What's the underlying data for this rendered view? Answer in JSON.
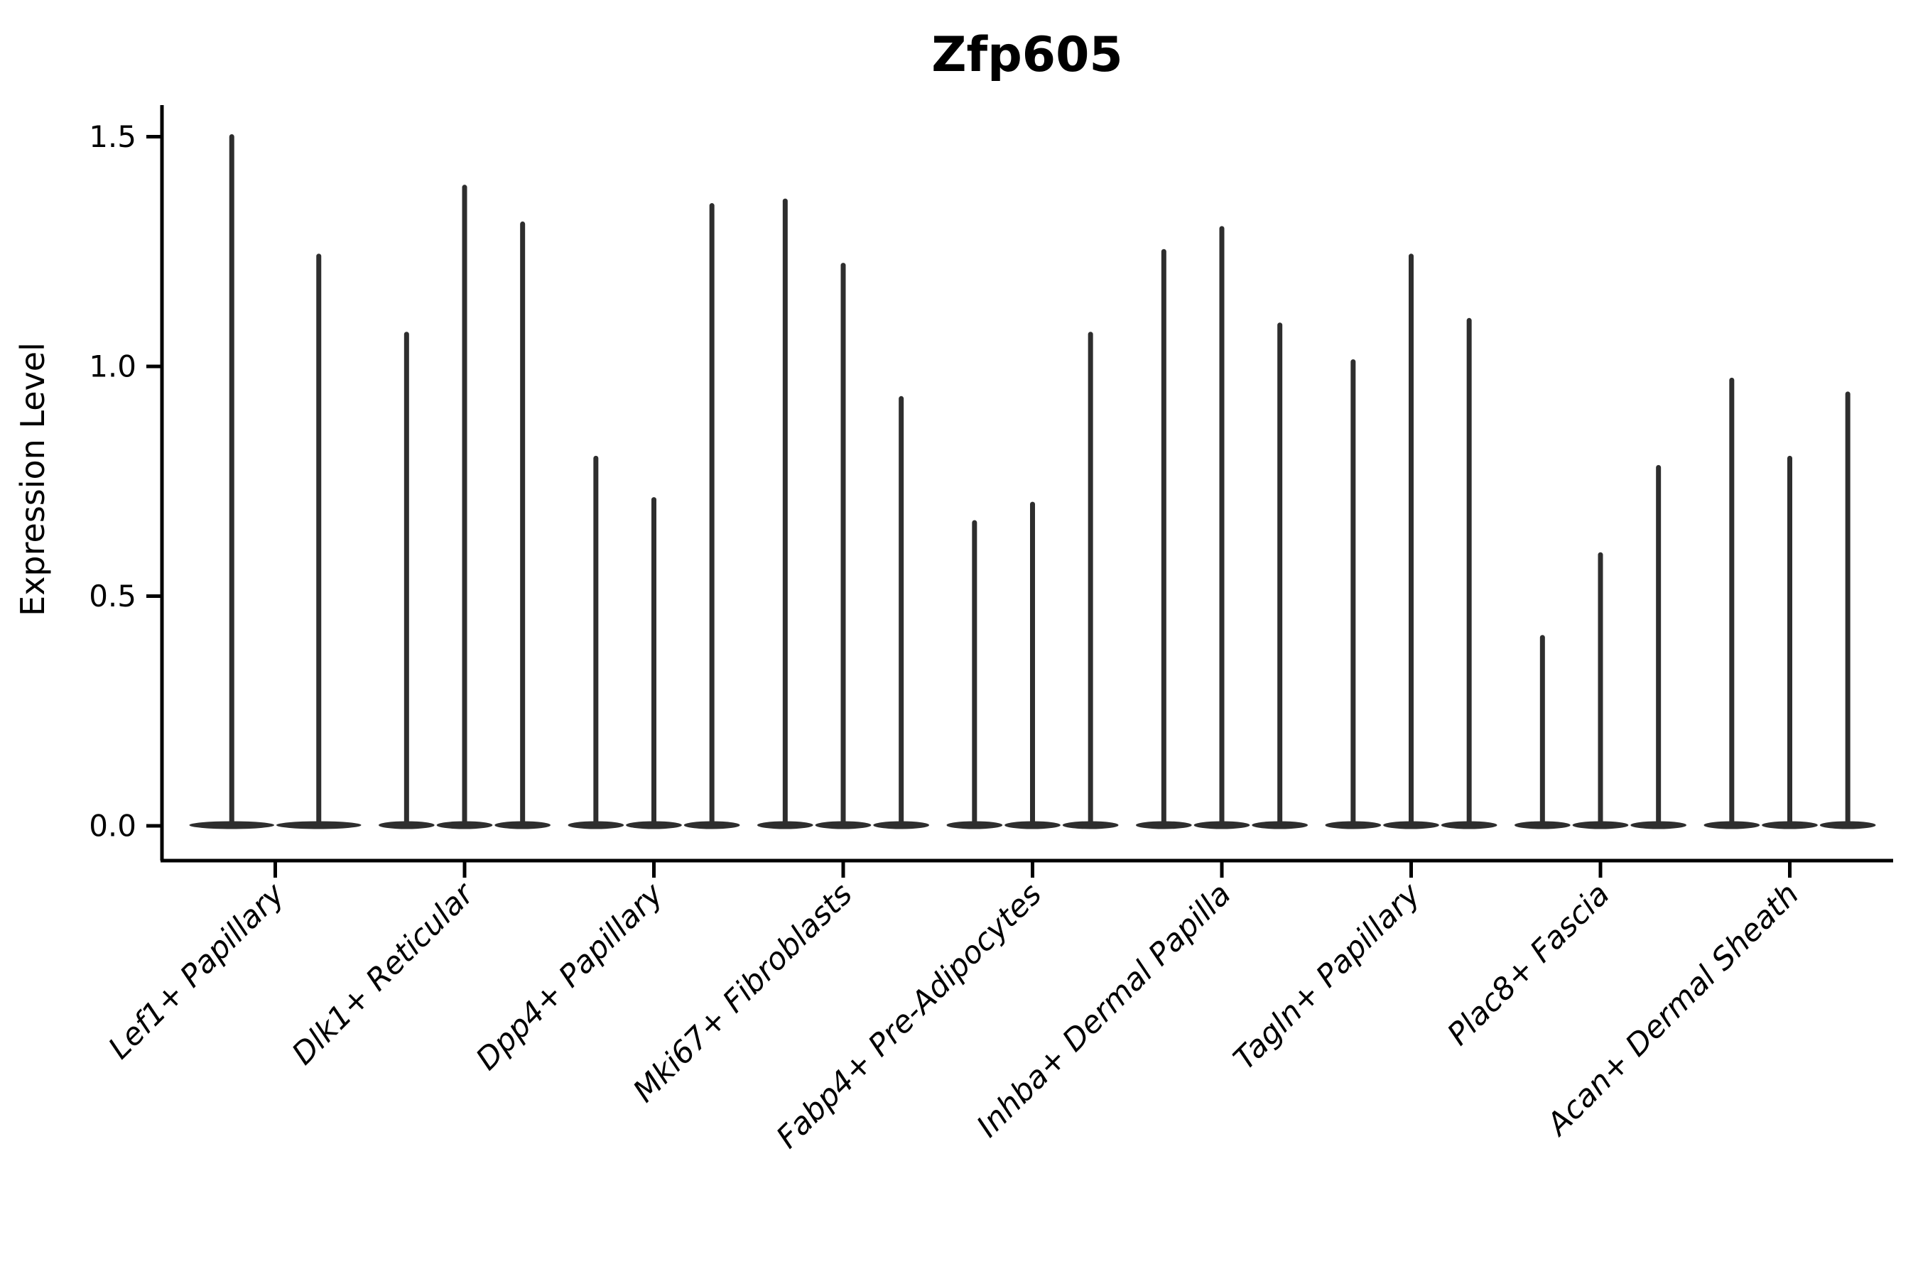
{
  "title": "Zfp605",
  "y_axis": {
    "label": "Expression Level",
    "ticks": [
      "0.0",
      "0.5",
      "1.0",
      "1.5"
    ],
    "tick_values": [
      0.0,
      0.5,
      1.0,
      1.5
    ]
  },
  "x_axis": {
    "categories": [
      "Lef1+ Papillary",
      "Dlk1+ Reticular",
      "Dpp4+ Papillary",
      "Mki67+ Fibroblasts",
      "Fabp4+ Pre-Adipocytes",
      "Inhba+ Dermal Papilla",
      "Tagln+ Papillary",
      "Plac8+ Fascia",
      "Acan+ Dermal Sheath"
    ]
  },
  "chart_data": {
    "type": "violin",
    "title": "Zfp605",
    "ylabel": "Expression Level",
    "ylim": [
      -0.08,
      1.57
    ],
    "yticks": [
      0.0,
      0.5,
      1.0,
      1.5
    ],
    "grid": false,
    "legend": "none",
    "violin_style": "needle-shaped: density mass concentrated at 0 (flat base) with a thin spike up to the maximum expression value",
    "categories": [
      "Lef1+ Papillary",
      "Dlk1+ Reticular",
      "Dpp4+ Papillary",
      "Mki67+ Fibroblasts",
      "Fabp4+ Pre-Adipocytes",
      "Inhba+ Dermal Papilla",
      "Tagln+ Papillary",
      "Plac8+ Fascia",
      "Acan+ Dermal Sheath"
    ],
    "series": [
      {
        "category": "Lef1+ Papillary",
        "spike_maxima": [
          1.5,
          1.24
        ]
      },
      {
        "category": "Dlk1+ Reticular",
        "spike_maxima": [
          1.07,
          1.39,
          1.31
        ]
      },
      {
        "category": "Dpp4+ Papillary",
        "spike_maxima": [
          0.8,
          0.71,
          1.35
        ]
      },
      {
        "category": "Mki67+ Fibroblasts",
        "spike_maxima": [
          1.36,
          1.22,
          0.93
        ]
      },
      {
        "category": "Fabp4+ Pre-Adipocytes",
        "spike_maxima": [
          0.66,
          0.7,
          1.07
        ]
      },
      {
        "category": "Inhba+ Dermal Papilla",
        "spike_maxima": [
          1.25,
          1.3,
          1.09
        ]
      },
      {
        "category": "Tagln+ Papillary",
        "spike_maxima": [
          1.01,
          1.24,
          1.1
        ]
      },
      {
        "category": "Plac8+ Fascia",
        "spike_maxima": [
          0.41,
          0.59,
          0.78
        ]
      },
      {
        "category": "Acan+ Dermal Sheath",
        "spike_maxima": [
          0.97,
          0.8,
          0.94
        ]
      }
    ]
  },
  "colors": {
    "violin": "#2e2e2e",
    "axis": "#000000",
    "text": "#000000",
    "background": "#ffffff"
  }
}
